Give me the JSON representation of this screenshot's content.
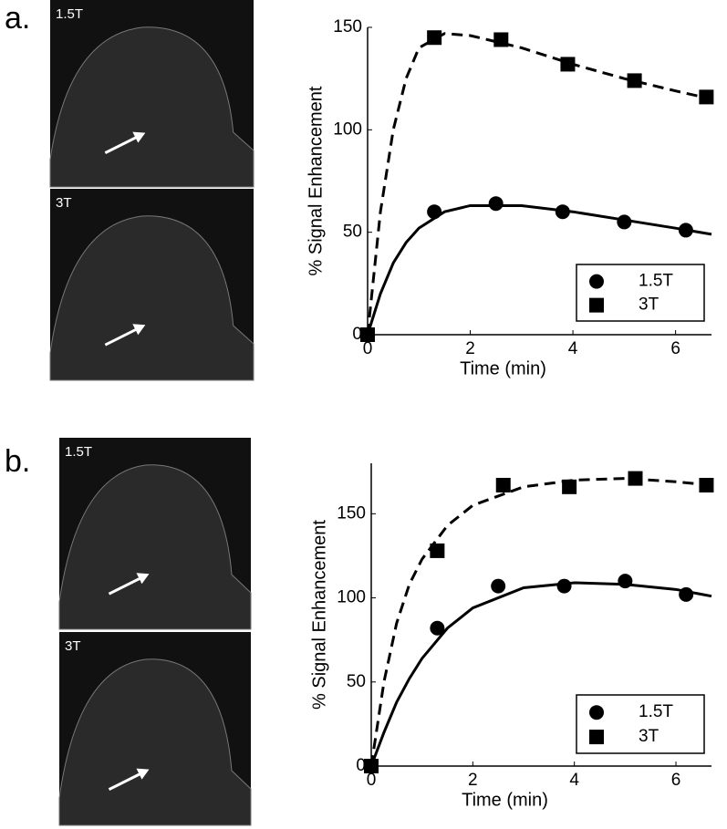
{
  "chart_data": [
    {
      "type": "line",
      "label": "a.",
      "images": [
        "1.5T",
        "3T"
      ],
      "xlabel": "Time (min)",
      "ylabel": "% Signal Enhancement",
      "xlim": [
        0,
        6.7
      ],
      "ylim": [
        0,
        150
      ],
      "xticks": [
        0,
        2,
        4,
        6
      ],
      "yticks": [
        0,
        50,
        100,
        150
      ],
      "legend": "lower right",
      "series": [
        {
          "name": "1.5T",
          "color": "#000000",
          "marker": "circle",
          "dashed": false,
          "x": [
            0,
            1.3,
            2.5,
            3.8,
            5.0,
            6.2
          ],
          "values": [
            0,
            60,
            64,
            60,
            55,
            51
          ],
          "fit_x": [
            0,
            0.25,
            0.5,
            0.75,
            1,
            1.5,
            2,
            3,
            4,
            5,
            6,
            6.7
          ],
          "fit_values": [
            0,
            20,
            35,
            45,
            52,
            60,
            63,
            63,
            60,
            56,
            52,
            49
          ]
        },
        {
          "name": "3T",
          "color": "#000000",
          "marker": "square",
          "dashed": true,
          "x": [
            0,
            1.3,
            2.6,
            3.9,
            5.2,
            6.6
          ],
          "values": [
            0,
            145,
            144,
            132,
            124,
            116
          ],
          "fit_x": [
            0,
            0.25,
            0.5,
            0.75,
            1,
            1.5,
            2,
            3,
            4,
            5,
            6,
            6.7
          ],
          "fit_values": [
            0,
            60,
            100,
            125,
            140,
            147,
            146,
            140,
            132,
            125,
            119,
            115
          ]
        }
      ]
    },
    {
      "type": "line",
      "label": "b.",
      "images": [
        "1.5T",
        "3T"
      ],
      "xlabel": "Time (min)",
      "ylabel": "% Signal Enhancement",
      "xlim": [
        0,
        6.7
      ],
      "ylim": [
        0,
        180
      ],
      "xticks": [
        0,
        2,
        4,
        6
      ],
      "yticks": [
        0,
        50,
        100,
        150
      ],
      "legend": "lower right",
      "series": [
        {
          "name": "1.5T",
          "color": "#000000",
          "marker": "circle",
          "dashed": false,
          "x": [
            0,
            1.3,
            2.5,
            3.8,
            5.0,
            6.2
          ],
          "values": [
            0,
            82,
            107,
            107,
            110,
            102
          ],
          "fit_x": [
            0,
            0.25,
            0.5,
            0.75,
            1,
            1.5,
            2,
            3,
            4,
            5,
            6,
            6.7
          ],
          "fit_values": [
            0,
            20,
            38,
            52,
            64,
            82,
            94,
            106,
            109,
            108,
            105,
            101
          ]
        },
        {
          "name": "3T",
          "color": "#000000",
          "marker": "square",
          "dashed": true,
          "x": [
            0,
            1.3,
            2.6,
            3.9,
            5.2,
            6.6
          ],
          "values": [
            0,
            128,
            167,
            166,
            171,
            167
          ],
          "fit_x": [
            0,
            0.25,
            0.5,
            0.75,
            1,
            1.5,
            2,
            3,
            4,
            5,
            6,
            6.7
          ],
          "fit_values": [
            0,
            50,
            85,
            108,
            123,
            143,
            155,
            166,
            170,
            171,
            169,
            167
          ]
        }
      ]
    }
  ]
}
